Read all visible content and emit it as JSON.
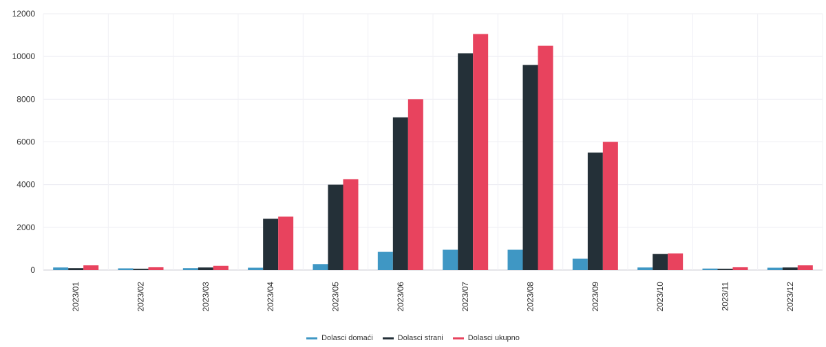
{
  "chart_data": {
    "type": "bar",
    "categories": [
      "2023/01",
      "2023/02",
      "2023/03",
      "2023/04",
      "2023/05",
      "2023/06",
      "2023/07",
      "2023/08",
      "2023/09",
      "2023/10",
      "2023/11",
      "2023/12"
    ],
    "series": [
      {
        "name": "Dolasci domaći",
        "color": "#3f97c4",
        "values": [
          120,
          80,
          90,
          110,
          280,
          850,
          950,
          950,
          530,
          120,
          70,
          110
        ]
      },
      {
        "name": "Dolasci strani",
        "color": "#243038",
        "values": [
          90,
          60,
          120,
          2400,
          4000,
          7150,
          10150,
          9600,
          5500,
          750,
          60,
          120
        ]
      },
      {
        "name": "Dolasci ukupno",
        "color": "#e8435e",
        "values": [
          220,
          130,
          200,
          2500,
          4250,
          8000,
          11050,
          10500,
          6000,
          780,
          130,
          220
        ]
      }
    ],
    "ylim": [
      0,
      12000
    ],
    "yticks": [
      "0",
      "2000",
      "4000",
      "6000",
      "8000",
      "10000",
      "12000"
    ],
    "grid": true,
    "legend_position": "bottom-center"
  }
}
